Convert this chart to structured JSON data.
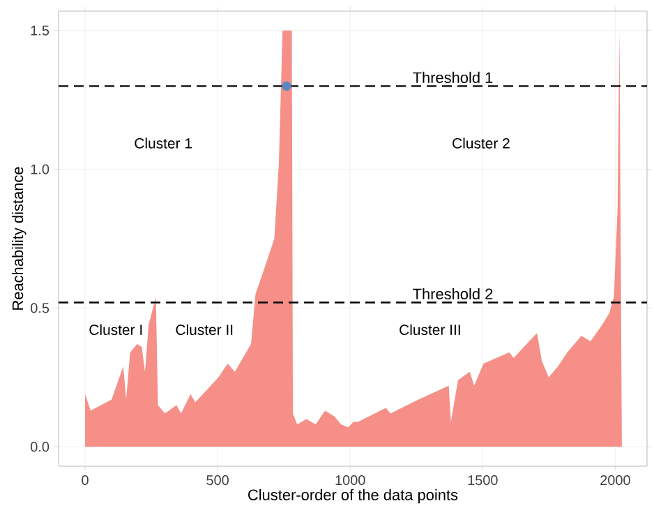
{
  "chart_data": {
    "type": "area",
    "xlabel": "Cluster-order of the data points",
    "ylabel": "Reachability distance",
    "xlim": [
      -100,
      2120
    ],
    "ylim": [
      -0.07,
      1.57
    ],
    "xticks": [
      0,
      500,
      1000,
      1500,
      2000
    ],
    "yticks": [
      {
        "value": 0,
        "label": "0.0"
      },
      {
        "value": 0.5,
        "label": "0.5"
      },
      {
        "value": 1,
        "label": "1.0"
      },
      {
        "value": 1.5,
        "label": "1.5"
      }
    ],
    "grid": true,
    "series": [
      {
        "color": "#f58f88",
        "x": [
          0,
          21,
          100,
          144,
          155,
          170,
          196,
          214,
          226,
          240,
          267,
          275,
          301,
          345,
          362,
          398,
          416,
          503,
          538,
          565,
          626,
          643,
          679,
          714,
          731,
          745,
          780,
          784,
          800,
          835,
          870,
          905,
          940,
          966,
          993,
          1012,
          1030,
          1135,
          1152,
          1258,
          1372,
          1380,
          1407,
          1451,
          1468,
          1503,
          1600,
          1617,
          1705,
          1723,
          1749,
          1784,
          1819,
          1872,
          1907,
          1951,
          1977,
          1995,
          2009,
          2016,
          2025
        ],
        "values": [
          0.19,
          0.13,
          0.17,
          0.29,
          0.17,
          0.34,
          0.37,
          0.36,
          0.27,
          0.44,
          0.54,
          0.15,
          0.12,
          0.15,
          0.12,
          0.19,
          0.16,
          0.25,
          0.3,
          0.27,
          0.37,
          0.55,
          0.65,
          0.75,
          1.02,
          1.5,
          1.5,
          0.12,
          0.08,
          0.1,
          0.08,
          0.13,
          0.11,
          0.08,
          0.07,
          0.09,
          0.09,
          0.14,
          0.12,
          0.17,
          0.22,
          0.09,
          0.24,
          0.27,
          0.22,
          0.3,
          0.34,
          0.32,
          0.41,
          0.31,
          0.25,
          0.29,
          0.34,
          0.4,
          0.38,
          0.44,
          0.48,
          0.54,
          0.86,
          1.5,
          0
        ]
      },
      {
        "type": "scatter",
        "color": "#5b87c0",
        "marker": "circle",
        "x": [
          760
        ],
        "values": [
          1.3
        ]
      }
    ],
    "ref_lines": [
      {
        "axis": "y",
        "value": 1.3,
        "label": "Threshold 1",
        "line_style": "dashed",
        "color": "#000000"
      },
      {
        "axis": "y",
        "value": 0.52,
        "label": "Threshold 2",
        "line_style": "dashed",
        "color": "#000000"
      }
    ],
    "annotations": [
      "Cluster 1",
      "Cluster 2",
      "Cluster I",
      "Cluster II",
      "Cluster III"
    ]
  }
}
